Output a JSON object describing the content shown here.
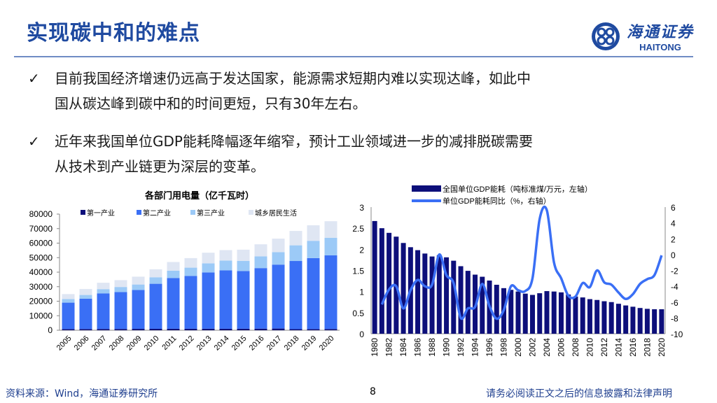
{
  "header": {
    "title": "实现碳中和的难点",
    "logo_cn": "海通证券",
    "logo_en": "HAITONG"
  },
  "bullets": [
    {
      "icon": "check-icon",
      "lines": [
        "目前我国经济增速仍远高于发达国家，能源需求短期内难以实现达峰，如此中",
        "国从碳达峰到碳中和的时间更短，只有30年左右。"
      ]
    },
    {
      "icon": "check-icon",
      "lines": [
        "近年来我国单位GDP能耗降幅逐年缩窄，预计工业领域进一步的减排脱碳需要",
        "从技术到产业链更为深层的变革。"
      ]
    }
  ],
  "footer": {
    "source": "资料来源：Wind，海通证券研究所",
    "page": "8",
    "disclaimer": "请务必阅读正文之后的信息披露和法律声明"
  },
  "chart_data": [
    {
      "type": "bar",
      "stacked": true,
      "title": "各部门用电量（亿千瓦时）",
      "xlabel": "",
      "ylabel": "",
      "ylim": [
        0,
        80000
      ],
      "yticks": [
        0,
        10000,
        20000,
        30000,
        40000,
        50000,
        60000,
        70000,
        80000
      ],
      "legend": "top",
      "grid": false,
      "categories": [
        "2005",
        "2006",
        "2007",
        "2008",
        "2009",
        "2010",
        "2011",
        "2012",
        "2013",
        "2014",
        "2015",
        "2016",
        "2017",
        "2018",
        "2019",
        "2020"
      ],
      "series": [
        {
          "name": "第一产业",
          "color": "#0d0f7a",
          "values": [
            760,
            830,
            880,
            880,
            940,
            980,
            1010,
            1010,
            1030,
            1000,
            1020,
            1080,
            1150,
            730,
            780,
            860
          ]
        },
        {
          "name": "第二产业",
          "color": "#3a6ff5",
          "values": [
            18240,
            20870,
            24420,
            25420,
            26760,
            31020,
            34890,
            36390,
            38770,
            40200,
            39780,
            41720,
            44050,
            46970,
            48920,
            50740
          ]
        },
        {
          "name": "第三产业",
          "color": "#9ccaf7",
          "values": [
            2500,
            2600,
            3000,
            3500,
            3800,
            4500,
            5100,
            5700,
            6300,
            6800,
            7000,
            8100,
            8600,
            10800,
            11900,
            12100
          ]
        },
        {
          "name": "城乡居民生活",
          "color": "#dfe6f3",
          "values": [
            3400,
            4100,
            4400,
            4700,
            5400,
            5500,
            6000,
            6600,
            7300,
            7200,
            7700,
            8300,
            9300,
            9900,
            10700,
            11400
          ]
        }
      ]
    },
    {
      "type": "bar+line",
      "title": "",
      "xlabel": "",
      "ylim": [
        0,
        3
      ],
      "y2lim": [
        -10,
        6
      ],
      "yticks": [
        0,
        0.5,
        1,
        1.5,
        2,
        2.5,
        3
      ],
      "y2ticks": [
        -10,
        -8,
        -6,
        -4,
        -2,
        0,
        2,
        4,
        6
      ],
      "legend": "top",
      "grid": false,
      "x": [
        "1980",
        "1981",
        "1982",
        "1983",
        "1984",
        "1985",
        "1986",
        "1987",
        "1988",
        "1989",
        "1990",
        "1991",
        "1992",
        "1993",
        "1994",
        "1995",
        "1996",
        "1997",
        "1998",
        "1999",
        "2000",
        "2001",
        "2002",
        "2003",
        "2004",
        "2005",
        "2006",
        "2007",
        "2008",
        "2009",
        "2010",
        "2011",
        "2012",
        "2013",
        "2014",
        "2015",
        "2016",
        "2017",
        "2018",
        "2019",
        "2020"
      ],
      "series": [
        {
          "name": "全国单位GDP能耗（吨标准煤/万元，左轴）",
          "axis": "left",
          "kind": "bar",
          "color": "#0d0f7a",
          "values": [
            2.67,
            2.5,
            2.39,
            2.3,
            2.15,
            2.05,
            1.98,
            1.9,
            1.83,
            1.86,
            1.81,
            1.73,
            1.6,
            1.49,
            1.4,
            1.35,
            1.26,
            1.16,
            1.08,
            1.04,
            1.0,
            0.95,
            0.92,
            0.96,
            1.01,
            1.0,
            0.98,
            0.93,
            0.88,
            0.86,
            0.82,
            0.8,
            0.77,
            0.75,
            0.71,
            0.67,
            0.64,
            0.61,
            0.59,
            0.58,
            0.58
          ]
        },
        {
          "name": "单位GDP能耗同比（%，右轴）",
          "axis": "right",
          "kind": "line",
          "color": "#3a6ff5",
          "values": [
            null,
            -6.3,
            -4.4,
            -4.0,
            -6.8,
            -4.5,
            -3.2,
            -4.0,
            -3.8,
            0.0,
            -2.6,
            -3.6,
            -8.0,
            -6.8,
            -6.6,
            -3.7,
            -6.5,
            -8.1,
            -7.0,
            -4.0,
            -4.5,
            -4.6,
            -3.0,
            4.5,
            5.6,
            -1.0,
            -3.0,
            -5.2,
            -5.3,
            -3.6,
            -4.1,
            -2.0,
            -3.5,
            -3.8,
            -4.8,
            -5.6,
            -5.0,
            -3.7,
            -3.1,
            -2.6,
            -0.1
          ]
        }
      ]
    }
  ]
}
